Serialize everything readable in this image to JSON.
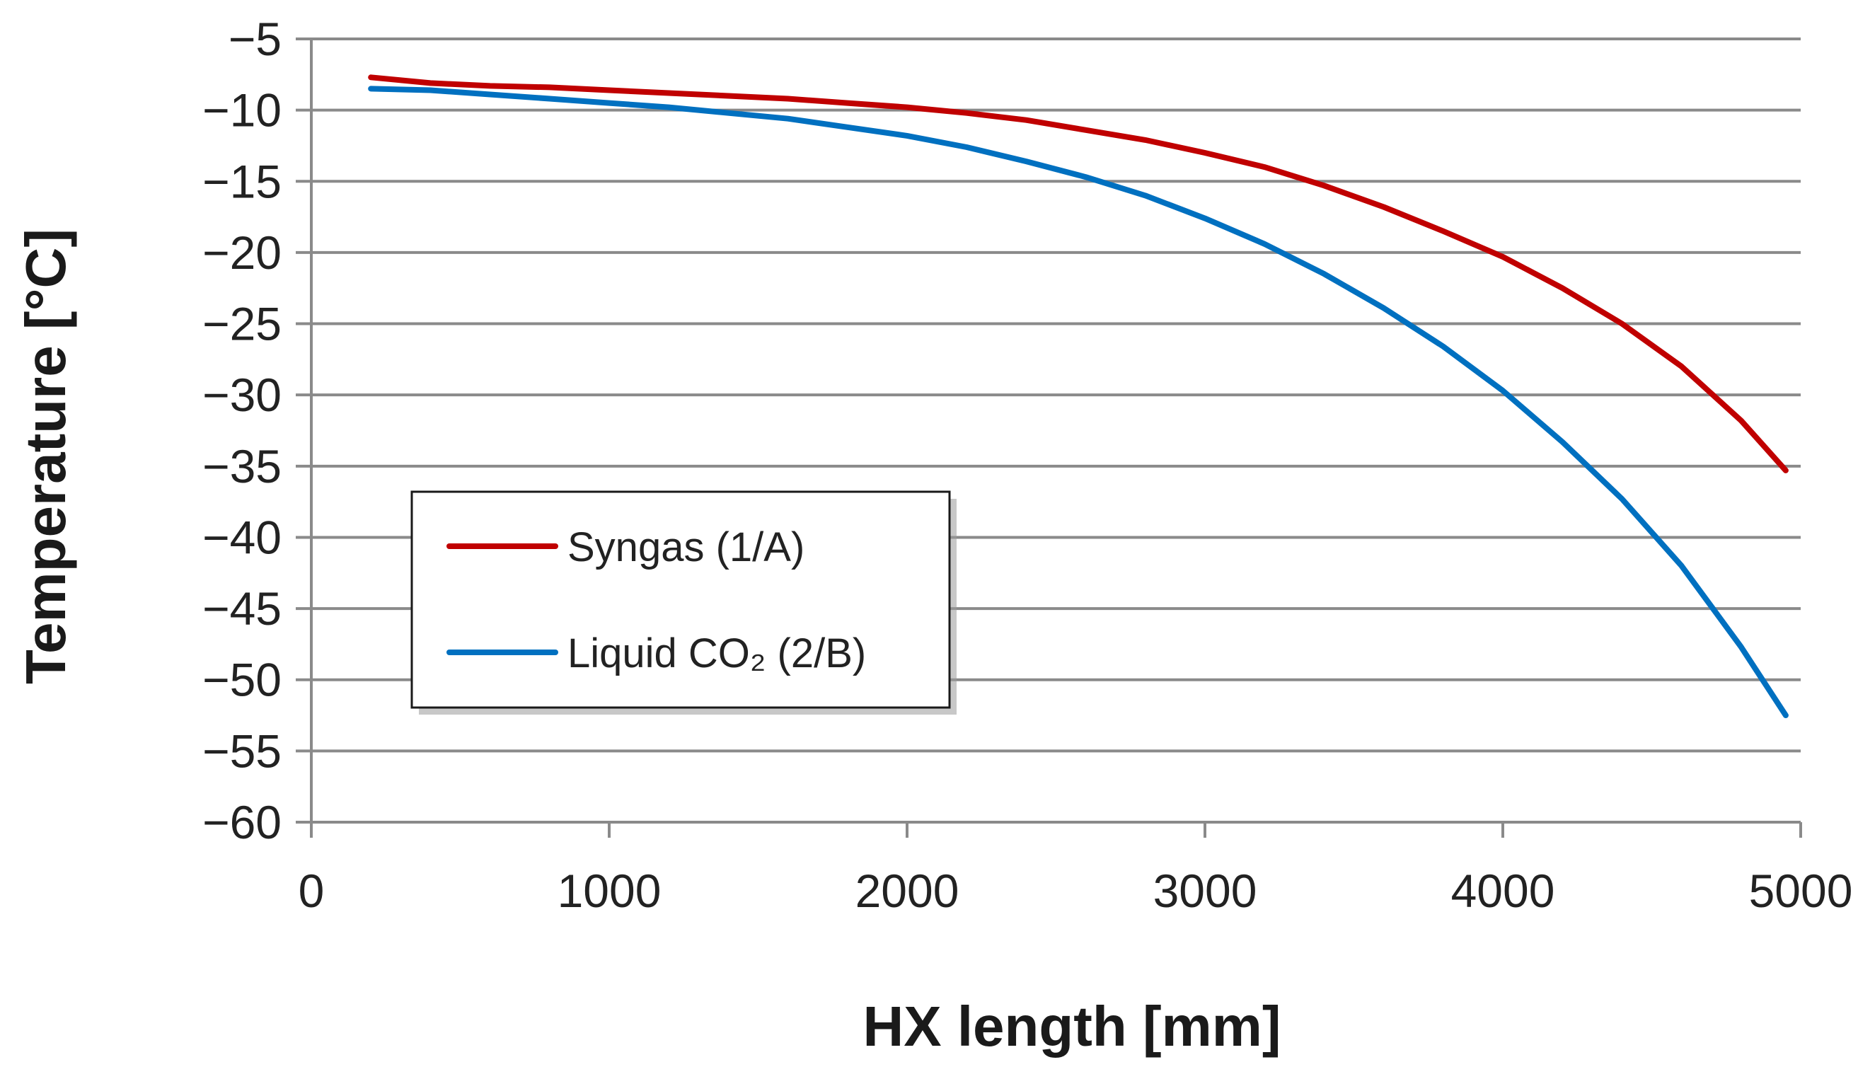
{
  "chart_data": {
    "type": "line",
    "title": "",
    "xlabel": "HX length [mm]",
    "ylabel": "Temperature [°C]",
    "xlim": [
      0,
      5000
    ],
    "ylim": [
      -60,
      -5
    ],
    "xticks": [
      0,
      1000,
      2000,
      3000,
      4000,
      5000
    ],
    "xtick_labels": [
      "0",
      "1000",
      "2000",
      "3000",
      "4000",
      "5000"
    ],
    "yticks": [
      -5,
      -10,
      -15,
      -20,
      -25,
      -30,
      -35,
      -40,
      -45,
      -50,
      -55,
      -60
    ],
    "ytick_labels": [
      "−5",
      "−10",
      "−15",
      "−20",
      "−25",
      "−30",
      "−35",
      "−40",
      "−45",
      "−50",
      "−55",
      "−60"
    ],
    "grid": "horizontal",
    "legend_position": "center-left",
    "series": [
      {
        "name": "Syngas (1/A)",
        "color": "#c00000",
        "x": [
          200,
          400,
          600,
          800,
          1000,
          1200,
          1400,
          1600,
          1800,
          2000,
          2200,
          2400,
          2600,
          2800,
          3000,
          3200,
          3400,
          3600,
          3800,
          4000,
          4200,
          4400,
          4600,
          4800,
          4950
        ],
        "y": [
          -7.7,
          -8.1,
          -8.3,
          -8.4,
          -8.6,
          -8.8,
          -9.0,
          -9.2,
          -9.5,
          -9.8,
          -10.2,
          -10.7,
          -11.4,
          -12.1,
          -13.0,
          -14.0,
          -15.3,
          -16.8,
          -18.5,
          -20.3,
          -22.5,
          -25.0,
          -28.0,
          -31.8,
          -35.3
        ]
      },
      {
        "name": "Liquid CO₂ (2/B)",
        "color": "#0070c0",
        "x": [
          200,
          400,
          600,
          800,
          1000,
          1200,
          1400,
          1600,
          1800,
          2000,
          2200,
          2400,
          2600,
          2800,
          3000,
          3200,
          3400,
          3600,
          3800,
          4000,
          4200,
          4400,
          4600,
          4800,
          4950
        ],
        "y": [
          -8.5,
          -8.6,
          -8.9,
          -9.2,
          -9.5,
          -9.8,
          -10.2,
          -10.6,
          -11.2,
          -11.8,
          -12.6,
          -13.6,
          -14.7,
          -16.0,
          -17.6,
          -19.4,
          -21.5,
          -23.9,
          -26.6,
          -29.7,
          -33.3,
          -37.3,
          -42.0,
          -47.7,
          -52.5
        ]
      }
    ]
  }
}
